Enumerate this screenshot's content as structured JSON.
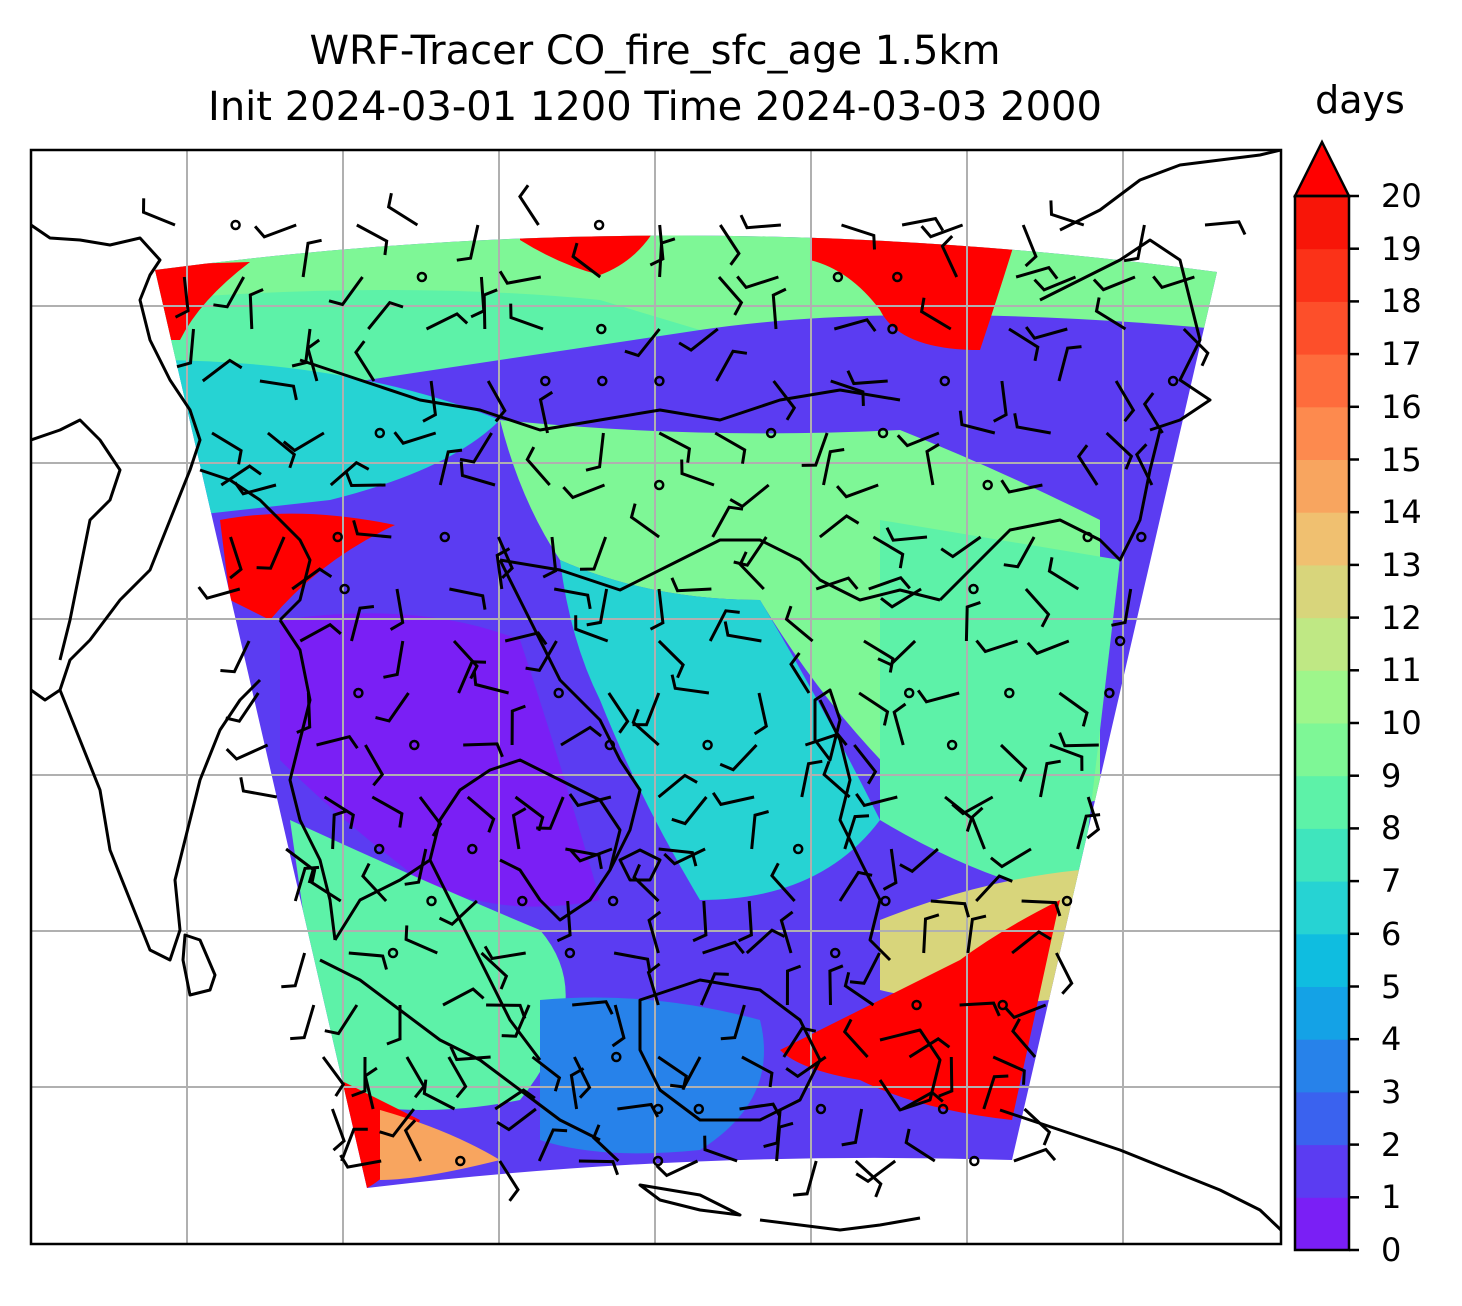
{
  "title_line1": "WRF-Tracer CO_fire_sfc_age 1.5km",
  "title_line2": "Init 2024-03-01 1200 Time 2024-03-03 2000",
  "colorbar": {
    "label": "days",
    "min": 0,
    "max": 20,
    "extend": "max",
    "ticks": [
      "0",
      "1",
      "2",
      "3",
      "4",
      "5",
      "6",
      "7",
      "8",
      "9",
      "10",
      "11",
      "12",
      "13",
      "14",
      "15",
      "16",
      "17",
      "18",
      "19",
      "20"
    ],
    "colors": [
      "#7a1ff5",
      "#5b3cf2",
      "#3a62ef",
      "#2782ea",
      "#14a2e6",
      "#0fbde0",
      "#26d3d3",
      "#3fe5bd",
      "#5df2a8",
      "#7ef796",
      "#9ef68b",
      "#bfe884",
      "#d8d57b",
      "#f0c070",
      "#f8a55f",
      "#fd8a4e",
      "#fe6c3c",
      "#fd4f2a",
      "#fb3218",
      "#f81508"
    ],
    "over_color": "#ff0000"
  },
  "map": {
    "variable": "CO_fire_sfc_age",
    "gridlines": true,
    "coastlines": true,
    "wind_barbs": true,
    "colors": {
      "purple": "#5b3cf2",
      "violet": "#7a1ff5",
      "blue": "#2782ea",
      "cyan": "#26d3d3",
      "aqua": "#5df2a8",
      "green": "#7ef796",
      "khaki": "#d8d57b",
      "red": "#ff0000",
      "orange": "#f8a55f"
    }
  }
}
